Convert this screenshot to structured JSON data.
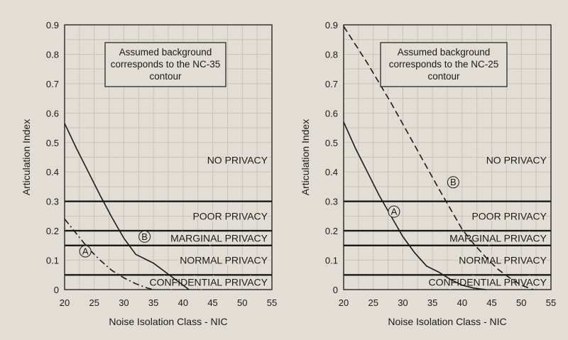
{
  "chart_data": [
    {
      "type": "line",
      "xlabel": "Noise Isolation Class - NIC",
      "ylabel": "Articulation Index",
      "xlim": [
        20,
        55
      ],
      "ylim": [
        0,
        0.9
      ],
      "x_ticks": [
        "20",
        "25",
        "30",
        "35",
        "40",
        "45",
        "50",
        "55"
      ],
      "y_ticks": [
        "0",
        "0.1",
        "0.2",
        "0.3",
        "0.4",
        "0.5",
        "0.6",
        "0.7",
        "0.8",
        "0.9"
      ],
      "x_tick_values": [
        20,
        25,
        30,
        35,
        40,
        45,
        50,
        55
      ],
      "y_tick_values": [
        0,
        0.1,
        0.2,
        0.3,
        0.4,
        0.5,
        0.6,
        0.7,
        0.8,
        0.9
      ],
      "grid": true,
      "annotation": [
        "Assumed background",
        "corresponds to the NC-35",
        "contour"
      ],
      "thresholds": [
        0.05,
        0.15,
        0.2,
        0.3
      ],
      "zones": [
        {
          "label": "NO PRIVACY",
          "y": 0.44
        },
        {
          "label": "POOR PRIVACY",
          "y": 0.25
        },
        {
          "label": "MARGINAL PRIVACY",
          "y": 0.175
        },
        {
          "label": "NORMAL PRIVACY",
          "y": 0.1
        },
        {
          "label": "CONFIDENTIAL PRIVACY",
          "y": 0.025
        }
      ],
      "series": [
        {
          "name": "A",
          "style": "dashdot",
          "marker_at": [
            23.5,
            0.13
          ],
          "points": [
            [
              20,
              0.24
            ],
            [
              22,
              0.19
            ],
            [
              24,
              0.14
            ],
            [
              26,
              0.1
            ],
            [
              28,
              0.065
            ],
            [
              30,
              0.04
            ],
            [
              32,
              0.02
            ],
            [
              34,
              0.005
            ],
            [
              35,
              0
            ]
          ]
        },
        {
          "name": "B",
          "style": "solid",
          "marker_at": [
            33.5,
            0.18
          ],
          "points": [
            [
              20,
              0.565
            ],
            [
              22,
              0.48
            ],
            [
              24,
              0.4
            ],
            [
              26,
              0.32
            ],
            [
              28,
              0.245
            ],
            [
              30,
              0.175
            ],
            [
              32,
              0.12
            ],
            [
              34,
              0.1
            ],
            [
              35,
              0.09
            ],
            [
              37,
              0.06
            ],
            [
              39,
              0.03
            ],
            [
              41,
              0
            ]
          ]
        }
      ]
    },
    {
      "type": "line",
      "xlabel": "Noise Isolation Class - NIC",
      "ylabel": "Articulation Index",
      "xlim": [
        20,
        55
      ],
      "ylim": [
        0,
        0.9
      ],
      "x_ticks": [
        "20",
        "25",
        "30",
        "35",
        "40",
        "45",
        "50",
        "55"
      ],
      "y_ticks": [
        "0",
        "0.1",
        "0.2",
        "0.3",
        "0.4",
        "0.5",
        "0.6",
        "0.7",
        "0.8",
        "0.9"
      ],
      "x_tick_values": [
        20,
        25,
        30,
        35,
        40,
        45,
        50,
        55
      ],
      "y_tick_values": [
        0,
        0.1,
        0.2,
        0.3,
        0.4,
        0.5,
        0.6,
        0.7,
        0.8,
        0.9
      ],
      "grid": true,
      "annotation": [
        "Assumed background",
        "corresponds to the NC-25",
        "contour"
      ],
      "thresholds": [
        0.05,
        0.15,
        0.2,
        0.3
      ],
      "zones": [
        {
          "label": "NO PRIVACY",
          "y": 0.44
        },
        {
          "label": "POOR PRIVACY",
          "y": 0.25
        },
        {
          "label": "MARGINAL PRIVACY",
          "y": 0.175
        },
        {
          "label": "NORMAL PRIVACY",
          "y": 0.1
        },
        {
          "label": "CONFIDENTIAL PRIVACY",
          "y": 0.025
        }
      ],
      "series": [
        {
          "name": "A",
          "style": "solid",
          "marker_at": [
            28.5,
            0.265
          ],
          "points": [
            [
              20,
              0.57
            ],
            [
              22,
              0.48
            ],
            [
              24,
              0.4
            ],
            [
              26,
              0.32
            ],
            [
              28,
              0.25
            ],
            [
              30,
              0.18
            ],
            [
              32,
              0.125
            ],
            [
              34,
              0.08
            ],
            [
              36,
              0.06
            ],
            [
              38,
              0.035
            ],
            [
              40,
              0.015
            ],
            [
              42,
              0.005
            ],
            [
              44,
              0
            ]
          ]
        },
        {
          "name": "B",
          "style": "dashed",
          "marker_at": [
            38.5,
            0.365
          ],
          "points": [
            [
              20,
              0.895
            ],
            [
              24,
              0.77
            ],
            [
              28,
              0.635
            ],
            [
              32,
              0.49
            ],
            [
              36,
              0.345
            ],
            [
              40,
              0.205
            ],
            [
              42,
              0.155
            ],
            [
              44,
              0.11
            ],
            [
              46,
              0.07
            ],
            [
              48,
              0.04
            ],
            [
              50,
              0.015
            ],
            [
              52,
              0
            ]
          ]
        }
      ]
    }
  ]
}
